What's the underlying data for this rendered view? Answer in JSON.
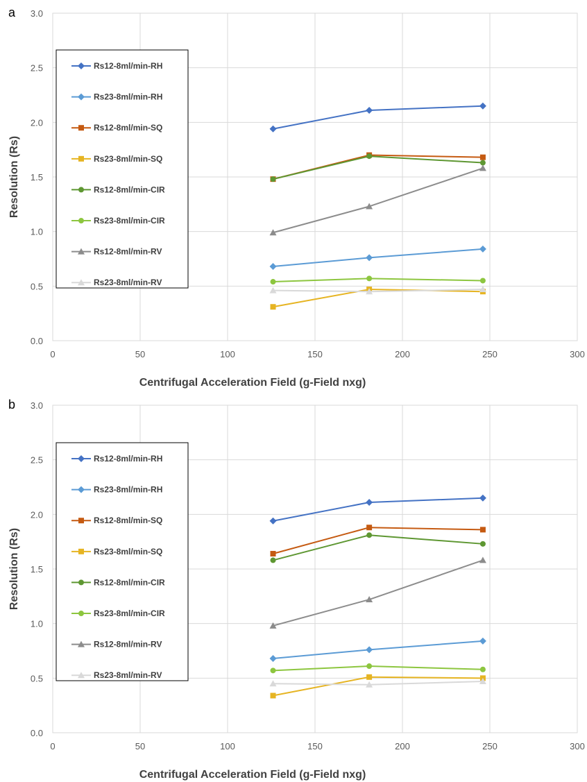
{
  "chart_data": [
    {
      "type": "line",
      "panel_label": "a",
      "xlabel": "Centrifugal Acceleration Field (g-Field nxg)",
      "ylabel": "Resolution (Rs)",
      "xlim": [
        0,
        300
      ],
      "ylim": [
        0,
        3.0
      ],
      "x_ticks": [
        "0",
        "50",
        "100",
        "150",
        "200",
        "250",
        "300"
      ],
      "y_ticks": [
        "0.0",
        "0.5",
        "1.0",
        "1.5",
        "2.0",
        "2.5",
        "3.0"
      ],
      "grid": true,
      "legend_position": "left",
      "x": [
        126,
        181,
        246
      ],
      "series": [
        {
          "name": "Rs12-8ml/min-RH",
          "color": "#4472C4",
          "marker": "diamond",
          "values": [
            1.94,
            2.11,
            2.15
          ]
        },
        {
          "name": "Rs23-8ml/min-RH",
          "color": "#5B9BD5",
          "marker": "diamond",
          "values": [
            0.68,
            0.76,
            0.84
          ]
        },
        {
          "name": "Rs12-8ml/min-SQ",
          "color": "#C55A11",
          "marker": "square",
          "values": [
            1.48,
            1.7,
            1.68
          ]
        },
        {
          "name": "Rs23-8ml/min-SQ",
          "color": "#E6B422",
          "marker": "square",
          "values": [
            0.31,
            0.47,
            0.45
          ]
        },
        {
          "name": "Rs12-8ml/min-CIR",
          "color": "#5E9732",
          "marker": "circle",
          "values": [
            1.48,
            1.69,
            1.63
          ]
        },
        {
          "name": "Rs23-8ml/min-CIR",
          "color": "#8DC63F",
          "marker": "circle",
          "values": [
            0.54,
            0.57,
            0.55
          ]
        },
        {
          "name": "Rs12-8ml/min-RV",
          "color": "#8C8C8C",
          "marker": "triangle",
          "values": [
            0.99,
            1.23,
            1.58
          ]
        },
        {
          "name": "Rs23-8ml/min-RV",
          "color": "#D9D9D9",
          "marker": "triangle",
          "values": [
            0.46,
            0.45,
            0.47
          ]
        }
      ]
    },
    {
      "type": "line",
      "panel_label": "b",
      "xlabel": "Centrifugal Acceleration Field (g-Field nxg)",
      "ylabel": "Resolution (Rs)",
      "xlim": [
        0,
        300
      ],
      "ylim": [
        0,
        3.0
      ],
      "x_ticks": [
        "0",
        "50",
        "100",
        "150",
        "200",
        "250",
        "300"
      ],
      "y_ticks": [
        "0.0",
        "0.5",
        "1.0",
        "1.5",
        "2.0",
        "2.5",
        "3.0"
      ],
      "grid": true,
      "legend_position": "left",
      "x": [
        126,
        181,
        246
      ],
      "series": [
        {
          "name": "Rs12-8ml/min-RH",
          "color": "#4472C4",
          "marker": "diamond",
          "values": [
            1.94,
            2.11,
            2.15
          ]
        },
        {
          "name": "Rs23-8ml/min-RH",
          "color": "#5B9BD5",
          "marker": "diamond",
          "values": [
            0.68,
            0.76,
            0.84
          ]
        },
        {
          "name": "Rs12-8ml/min-SQ",
          "color": "#C55A11",
          "marker": "square",
          "values": [
            1.64,
            1.88,
            1.86
          ]
        },
        {
          "name": "Rs23-8ml/min-SQ",
          "color": "#E6B422",
          "marker": "square",
          "values": [
            0.34,
            0.51,
            0.5
          ]
        },
        {
          "name": "Rs12-8ml/min-CIR",
          "color": "#5E9732",
          "marker": "circle",
          "values": [
            1.58,
            1.81,
            1.73
          ]
        },
        {
          "name": "Rs23-8ml/min-CIR",
          "color": "#8DC63F",
          "marker": "circle",
          "values": [
            0.57,
            0.61,
            0.58
          ]
        },
        {
          "name": "Rs12-8ml/min-RV",
          "color": "#8C8C8C",
          "marker": "triangle",
          "values": [
            0.98,
            1.22,
            1.58
          ]
        },
        {
          "name": "Rs23-8ml/min-RV",
          "color": "#D9D9D9",
          "marker": "triangle",
          "values": [
            0.45,
            0.44,
            0.47
          ]
        }
      ]
    }
  ]
}
